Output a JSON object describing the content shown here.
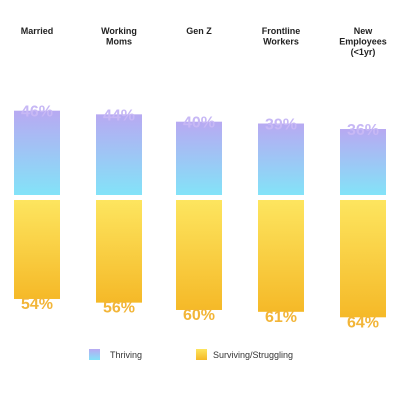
{
  "colors": {
    "thriving_top": "#b8a9f2",
    "thriving_bottom": "#83e3f8",
    "surviving_top": "#fde55f",
    "surviving_bottom": "#f5b928",
    "thriving_label": "#c7b8f5",
    "surviving_label": "#f2b538"
  },
  "chart_data": {
    "type": "bar",
    "stacked": true,
    "categories": [
      [
        "Married"
      ],
      [
        "Working",
        "Moms"
      ],
      [
        "Gen Z"
      ],
      [
        "Frontline",
        "Workers"
      ],
      [
        "New",
        "Employees",
        "(<1yr)"
      ]
    ],
    "series": [
      {
        "name": "Thriving",
        "values": [
          46,
          44,
          40,
          39,
          36
        ],
        "labels": [
          "46%",
          "44%",
          "40%",
          "39%",
          "36%"
        ]
      },
      {
        "name": "Surviving/Struggling",
        "values": [
          54,
          56,
          60,
          61,
          64
        ],
        "labels": [
          "54%",
          "56%",
          "60%",
          "61%",
          "64%"
        ]
      }
    ],
    "legend": {
      "position": "bottom",
      "items": [
        "Thriving",
        "Surviving/Struggling"
      ]
    }
  }
}
